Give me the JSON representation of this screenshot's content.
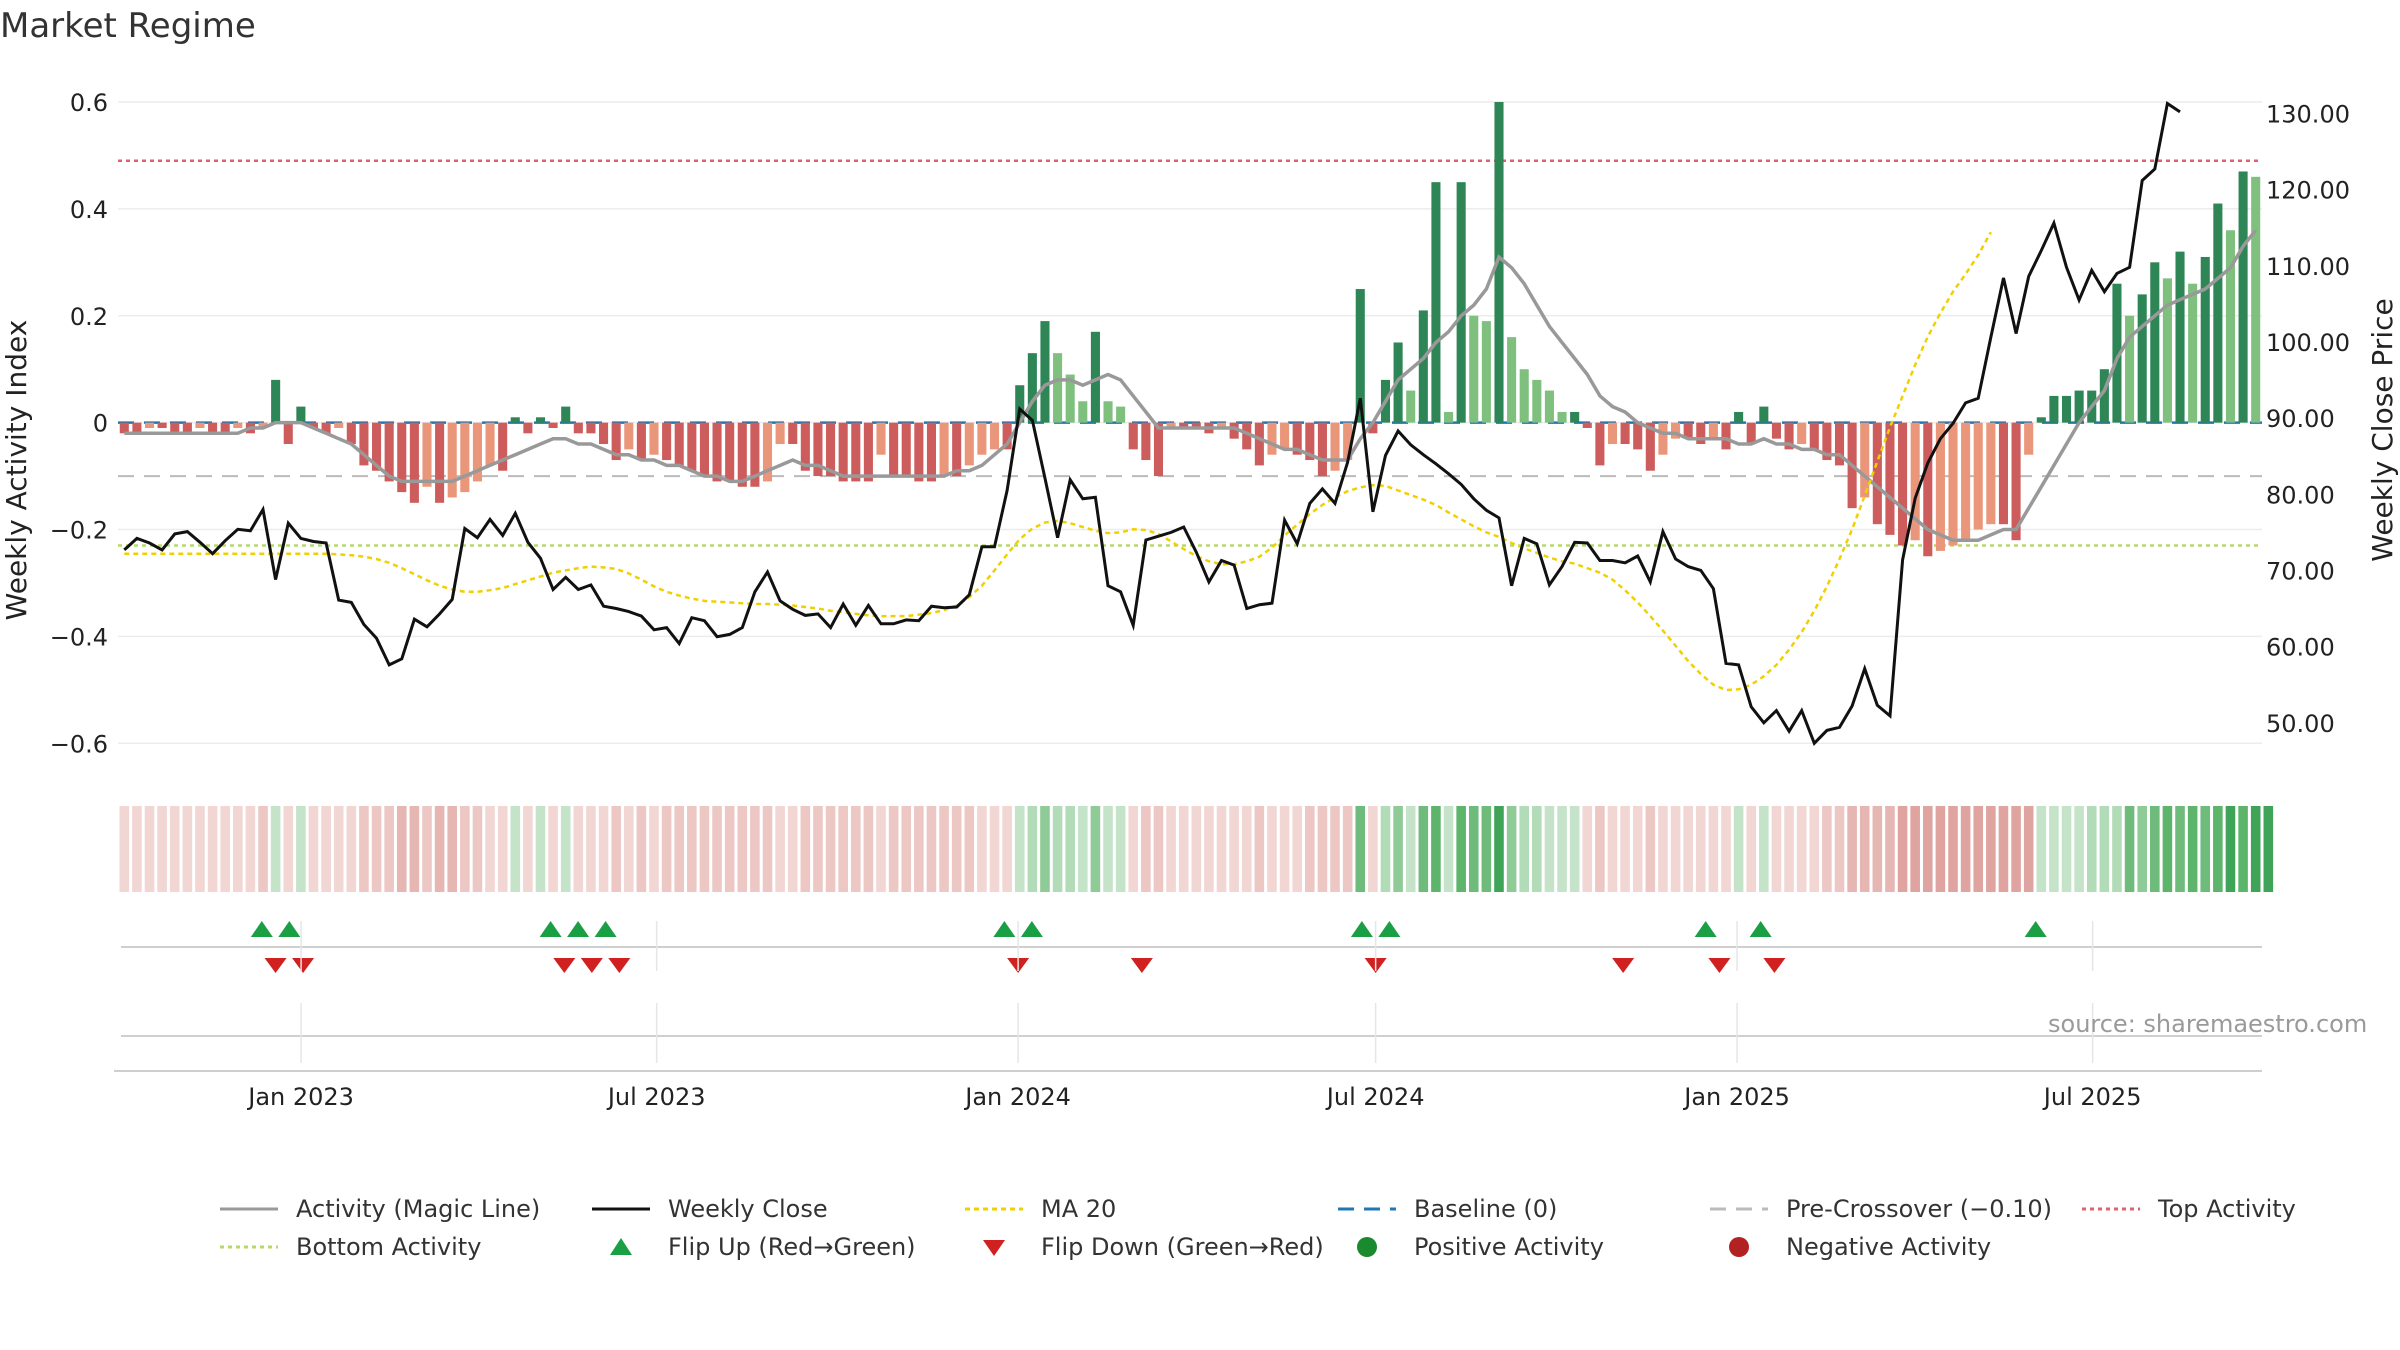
{
  "title": "Market Regime",
  "source": "source: sharemaestro.com",
  "legend": {
    "activity": "Activity (Magic Line)",
    "close": "Weekly Close",
    "ma": "MA 20",
    "baseline": "Baseline (0)",
    "precross": "Pre-Crossover (−0.10)",
    "top": "Top Activity",
    "bottom": "Bottom Activity",
    "flipup": "Flip Up (Red→Green)",
    "flipdown": "Flip Down (Green→Red)",
    "pos": "Positive Activity",
    "neg": "Negative Activity"
  },
  "colors": {
    "pos_dark": "#2e8555",
    "pos_light": "#7fc07f",
    "neg_dark": "#cd5c5c",
    "neg_light": "#e9967a",
    "close": "#111111",
    "activity": "#999999",
    "ma": "#f0d000",
    "baseline": "#1f77b4",
    "precross": "#bbbbbb",
    "top": "#e06070",
    "bottom": "#b5d96a",
    "flipup": "#1a9f45",
    "flipdown": "#d02020"
  },
  "chart_data": {
    "type": "bar",
    "ylabel": "Weekly Activity Index",
    "y2label": "Weekly Close Price",
    "ylim": [
      -0.65,
      0.6
    ],
    "y2lim": [
      43.8,
      131.5
    ],
    "yticks": [
      "0.6",
      "0.4",
      "0.2",
      "0",
      "−0.2",
      "−0.4",
      "−0.6"
    ],
    "y2ticks": [
      "130.00",
      "120.00",
      "110.00",
      "100.00",
      "90.00",
      "80.00",
      "70.00",
      "60.00",
      "50.00"
    ],
    "xticks": [
      "Jan 2023",
      "Jul 2023",
      "Jan 2024",
      "Jul 2024",
      "Jan 2025",
      "Jul 2025"
    ],
    "x_start": "2022-10-03",
    "x_end": "2025-09-22",
    "xtick_dates": [
      "2023-01-01",
      "2023-07-01",
      "2024-01-01",
      "2024-07-01",
      "2025-01-01",
      "2025-07-01"
    ],
    "reference_lines": {
      "baseline": 0,
      "pre_crossover": -0.1,
      "top_activity": 0.49,
      "bottom_activity": -0.23
    },
    "activity_bars": [
      -0.02,
      -0.02,
      -0.01,
      -0.01,
      -0.02,
      -0.02,
      -0.01,
      -0.02,
      -0.02,
      -0.01,
      -0.02,
      -0.01,
      0.08,
      -0.04,
      0.03,
      -0.01,
      -0.02,
      -0.01,
      -0.04,
      -0.08,
      -0.09,
      -0.11,
      -0.13,
      -0.15,
      -0.12,
      -0.15,
      -0.14,
      -0.13,
      -0.11,
      -0.08,
      -0.09,
      0.01,
      -0.02,
      0.01,
      -0.01,
      0.03,
      -0.02,
      -0.02,
      -0.04,
      -0.07,
      -0.05,
      -0.07,
      -0.06,
      -0.07,
      -0.08,
      -0.09,
      -0.1,
      -0.11,
      -0.11,
      -0.12,
      -0.12,
      -0.11,
      -0.04,
      -0.04,
      -0.09,
      -0.1,
      -0.1,
      -0.11,
      -0.11,
      -0.11,
      -0.06,
      -0.1,
      -0.1,
      -0.11,
      -0.11,
      -0.1,
      -0.1,
      -0.08,
      -0.06,
      -0.05,
      -0.05,
      0.07,
      0.13,
      0.19,
      0.13,
      0.09,
      0.04,
      0.17,
      0.04,
      0.03,
      -0.05,
      -0.07,
      -0.1,
      -0.01,
      -0.01,
      -0.01,
      -0.02,
      -0.01,
      -0.03,
      -0.05,
      -0.08,
      -0.06,
      -0.05,
      -0.06,
      -0.07,
      -0.1,
      -0.09,
      -0.07,
      0.25,
      -0.02,
      0.08,
      0.15,
      0.06,
      0.21,
      0.45,
      0.02,
      0.45,
      0.2,
      0.19,
      0.6,
      0.16,
      0.1,
      0.08,
      0.06,
      0.02,
      0.02,
      -0.01,
      -0.08,
      -0.04,
      -0.04,
      -0.05,
      -0.09,
      -0.06,
      -0.03,
      -0.03,
      -0.04,
      -0.03,
      -0.05,
      0.02,
      -0.04,
      0.03,
      -0.03,
      -0.05,
      -0.04,
      -0.05,
      -0.07,
      -0.08,
      -0.16,
      -0.14,
      -0.19,
      -0.21,
      -0.23,
      -0.22,
      -0.25,
      -0.24,
      -0.23,
      -0.22,
      -0.2,
      -0.19,
      -0.19,
      -0.22,
      -0.06,
      0.01,
      0.05,
      0.05,
      0.06,
      0.06,
      0.1,
      0.26,
      0.2,
      0.24,
      0.3,
      0.27,
      0.32,
      0.26,
      0.31,
      0.41,
      0.36,
      0.47,
      0.46
    ],
    "weekly_close": [
      72.7,
      74.2,
      73.6,
      72.7,
      74.8,
      75.1,
      73.7,
      72.2,
      73.9,
      75.4,
      75.2,
      78.0,
      68.8,
      76.2,
      74.2,
      73.8,
      73.6,
      66.1,
      65.8,
      62.9,
      61.1,
      57.6,
      58.4,
      63.6,
      62.6,
      64.3,
      66.2,
      75.5,
      74.3,
      76.7,
      74.6,
      77.5,
      73.7,
      71.6,
      67.5,
      69.1,
      67.5,
      68.1,
      65.3,
      65.0,
      64.6,
      64.0,
      62.2,
      62.5,
      60.4,
      63.8,
      63.4,
      61.3,
      61.6,
      62.5,
      67.2,
      69.8,
      66.0,
      64.9,
      64.1,
      64.3,
      62.5,
      65.6,
      62.8,
      65.4,
      63.0,
      63.0,
      63.5,
      63.4,
      65.3,
      65.1,
      65.2,
      66.8,
      73.1,
      73.1,
      80.5,
      91.2,
      89.7,
      82.1,
      74.3,
      81.9,
      79.4,
      79.6,
      68.0,
      67.2,
      62.8,
      74.0,
      74.5,
      75.0,
      75.7,
      72.4,
      68.5,
      71.3,
      70.7,
      65.0,
      65.5,
      65.7,
      76.6,
      73.5,
      78.8,
      80.7,
      78.8,
      84.2,
      92.6,
      77.7,
      85.1,
      88.3,
      86.5,
      85.2,
      84.0,
      82.7,
      81.3,
      79.4,
      77.9,
      76.9,
      68.0,
      74.2,
      73.5,
      68.1,
      70.5,
      73.7,
      73.6,
      71.3,
      71.3,
      71.0,
      71.9,
      68.5,
      75.1,
      71.5,
      70.5,
      70.0,
      67.6,
      57.8,
      57.6,
      52.1,
      50.0,
      51.6,
      48.9,
      51.6,
      47.3,
      49.0,
      49.4,
      52.2,
      57.1,
      52.3,
      50.9,
      71.4,
      79.5,
      84.1,
      87.3,
      89.3,
      92.0,
      92.6,
      100.6,
      108.4,
      101.1,
      108.6,
      112.0,
      115.6,
      109.8,
      105.5,
      109.4,
      106.6,
      109.0,
      109.8,
      121.2,
      122.7,
      131.3,
      130.2
    ],
    "activity_line": [
      -0.02,
      -0.02,
      -0.02,
      -0.02,
      -0.02,
      -0.02,
      -0.02,
      -0.02,
      -0.02,
      -0.02,
      -0.01,
      -0.01,
      0.0,
      0.0,
      0.0,
      -0.01,
      -0.02,
      -0.03,
      -0.04,
      -0.06,
      -0.08,
      -0.1,
      -0.11,
      -0.11,
      -0.11,
      -0.11,
      -0.11,
      -0.1,
      -0.09,
      -0.08,
      -0.07,
      -0.06,
      -0.05,
      -0.04,
      -0.03,
      -0.03,
      -0.04,
      -0.04,
      -0.05,
      -0.06,
      -0.06,
      -0.07,
      -0.07,
      -0.08,
      -0.08,
      -0.09,
      -0.1,
      -0.1,
      -0.11,
      -0.11,
      -0.1,
      -0.09,
      -0.08,
      -0.07,
      -0.08,
      -0.08,
      -0.09,
      -0.1,
      -0.1,
      -0.1,
      -0.1,
      -0.1,
      -0.1,
      -0.1,
      -0.1,
      -0.1,
      -0.09,
      -0.09,
      -0.08,
      -0.06,
      -0.04,
      0.0,
      0.04,
      0.07,
      0.08,
      0.08,
      0.07,
      0.08,
      0.09,
      0.08,
      0.05,
      0.02,
      -0.01,
      -0.01,
      -0.01,
      -0.01,
      -0.01,
      -0.01,
      -0.01,
      -0.02,
      -0.03,
      -0.04,
      -0.05,
      -0.05,
      -0.06,
      -0.07,
      -0.07,
      -0.07,
      -0.03,
      0.0,
      0.04,
      0.08,
      0.1,
      0.12,
      0.15,
      0.17,
      0.2,
      0.22,
      0.25,
      0.31,
      0.29,
      0.26,
      0.22,
      0.18,
      0.15,
      0.12,
      0.09,
      0.05,
      0.03,
      0.02,
      0.0,
      -0.01,
      -0.02,
      -0.02,
      -0.03,
      -0.03,
      -0.03,
      -0.03,
      -0.04,
      -0.04,
      -0.03,
      -0.04,
      -0.04,
      -0.05,
      -0.05,
      -0.06,
      -0.06,
      -0.08,
      -0.1,
      -0.12,
      -0.14,
      -0.16,
      -0.18,
      -0.2,
      -0.21,
      -0.22,
      -0.22,
      -0.22,
      -0.21,
      -0.2,
      -0.2,
      -0.16,
      -0.12,
      -0.08,
      -0.04,
      0.0,
      0.03,
      0.06,
      0.12,
      0.16,
      0.18,
      0.2,
      0.22,
      0.23,
      0.24,
      0.25,
      0.27,
      0.29,
      0.33,
      0.36
    ],
    "ma20": [
      72.2,
      72.2,
      72.2,
      72.2,
      72.2,
      72.2,
      72.2,
      72.2,
      72.2,
      72.2,
      72.2,
      72.2,
      72.2,
      72.2,
      72.2,
      72.2,
      72.2,
      72.1,
      72.0,
      71.8,
      71.5,
      71.0,
      70.3,
      69.5,
      68.7,
      68.0,
      67.5,
      67.2,
      67.2,
      67.4,
      67.7,
      68.2,
      68.7,
      69.2,
      69.7,
      70.0,
      70.3,
      70.5,
      70.4,
      70.2,
      69.6,
      68.8,
      67.9,
      67.2,
      66.7,
      66.3,
      66.0,
      65.9,
      65.8,
      65.7,
      65.6,
      65.6,
      65.5,
      65.4,
      65.2,
      65.0,
      64.7,
      64.5,
      64.3,
      64.1,
      64.0,
      64.0,
      64.0,
      64.2,
      64.4,
      64.8,
      65.4,
      66.5,
      68.0,
      70.0,
      72.1,
      74.1,
      75.5,
      76.3,
      76.5,
      76.2,
      75.7,
      75.2,
      74.9,
      75.0,
      75.4,
      75.3,
      74.8,
      73.8,
      72.8,
      71.9,
      71.2,
      70.8,
      70.8,
      71.2,
      71.8,
      73.0,
      74.6,
      76.0,
      77.4,
      78.6,
      79.6,
      80.4,
      80.9,
      81.2,
      81.1,
      80.5,
      79.9,
      79.3,
      78.6,
      77.6,
      76.7,
      75.8,
      75.0,
      74.4,
      73.6,
      72.9,
      72.3,
      71.7,
      71.2,
      70.9,
      70.3,
      69.7,
      68.8,
      67.4,
      65.8,
      64.0,
      62.1,
      60.1,
      58.1,
      56.4,
      55.0,
      54.3,
      54.4,
      55.0,
      56.1,
      57.6,
      59.6,
      61.9,
      64.7,
      67.9,
      71.5,
      75.4,
      79.8,
      84.3,
      88.8,
      92.9,
      97.0,
      100.7,
      103.8,
      106.6,
      108.9,
      111.4,
      114.4
    ],
    "ribbon_levels": [
      1,
      1,
      1,
      1,
      1,
      1,
      1,
      1,
      1,
      1,
      1,
      2,
      -1,
      1,
      -1,
      1,
      1,
      1,
      1,
      2,
      2,
      2,
      3,
      3,
      2,
      3,
      3,
      2,
      2,
      1,
      1,
      -1,
      1,
      -1,
      1,
      -1,
      1,
      1,
      1,
      2,
      1,
      2,
      1,
      2,
      2,
      2,
      2,
      2,
      2,
      2,
      2,
      2,
      1,
      1,
      2,
      2,
      2,
      2,
      2,
      2,
      1,
      2,
      2,
      2,
      2,
      2,
      2,
      2,
      1,
      1,
      1,
      -1,
      -2,
      -3,
      -2,
      -2,
      -1,
      -3,
      -1,
      -1,
      1,
      2,
      2,
      1,
      1,
      1,
      1,
      1,
      1,
      1,
      2,
      1,
      1,
      1,
      2,
      2,
      2,
      2,
      -4,
      1,
      -2,
      -3,
      -1,
      -4,
      -5,
      -1,
      -5,
      -4,
      -4,
      -6,
      -3,
      -2,
      -2,
      -1,
      -1,
      -1,
      1,
      2,
      1,
      1,
      1,
      2,
      1,
      1,
      1,
      1,
      1,
      1,
      -1,
      1,
      -1,
      1,
      1,
      1,
      1,
      2,
      2,
      3,
      3,
      3,
      3,
      4,
      4,
      4,
      4,
      4,
      4,
      4,
      4,
      4,
      4,
      4,
      -1,
      -1,
      -1,
      -1,
      -2,
      -2,
      -2,
      -4,
      -3,
      -4,
      -5,
      -4,
      -5,
      -4,
      -5,
      -6,
      -5,
      -6,
      -6
    ],
    "flip_up_dates": [
      "2022-12-12",
      "2022-12-26",
      "2023-05-08",
      "2023-05-22",
      "2023-06-05",
      "2023-12-25",
      "2024-01-08",
      "2024-06-24",
      "2024-07-08",
      "2024-12-16",
      "2025-01-13",
      "2025-06-02"
    ],
    "flip_down_dates": [
      "2022-12-19",
      "2023-01-02",
      "2023-05-15",
      "2023-05-29",
      "2023-06-12",
      "2024-01-01",
      "2024-03-04",
      "2024-07-01",
      "2024-11-04",
      "2024-12-23",
      "2025-01-20"
    ]
  }
}
